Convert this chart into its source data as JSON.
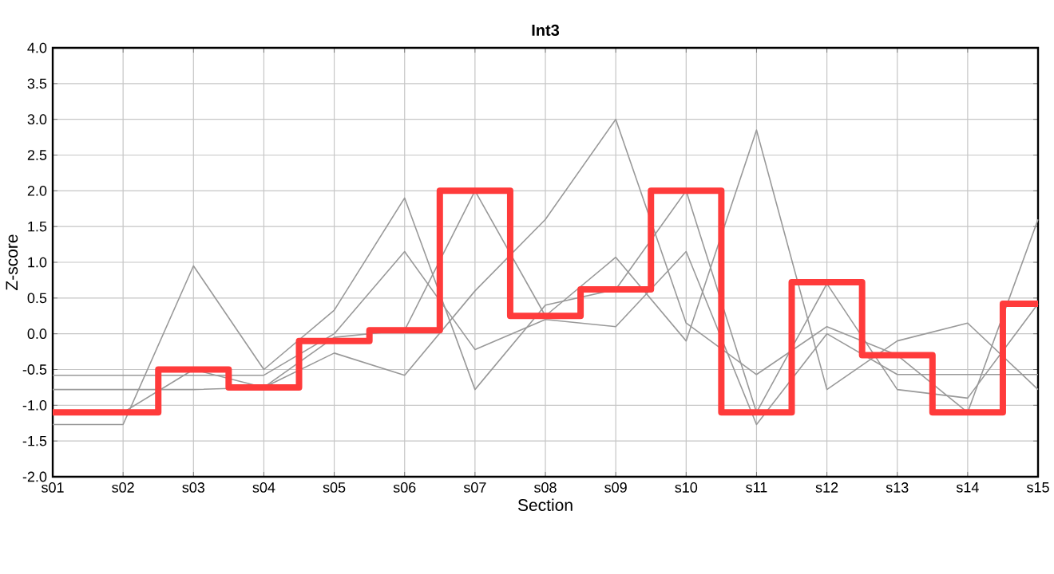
{
  "chart_data": {
    "type": "line",
    "title": "Int3",
    "xlabel": "Section",
    "ylabel": "Z-score",
    "categories": [
      "s01",
      "s02",
      "s03",
      "s04",
      "s05",
      "s06",
      "s07",
      "s08",
      "s09",
      "s10",
      "s11",
      "s12",
      "s13",
      "s14",
      "s15"
    ],
    "ylim": [
      -2,
      4
    ],
    "yticks": [
      {
        "value": -2,
        "label": "-2.0"
      },
      {
        "value": -1.5,
        "label": "-1.5"
      },
      {
        "value": -1,
        "label": "-1.0"
      },
      {
        "value": -0.5,
        "label": "-0.5"
      },
      {
        "value": 0,
        "label": "0.0"
      },
      {
        "value": 0.5,
        "label": "0.5"
      },
      {
        "value": 1,
        "label": "1.0"
      },
      {
        "value": 1.5,
        "label": "1.5"
      },
      {
        "value": 2,
        "label": "2.0"
      },
      {
        "value": 2.5,
        "label": "2.5"
      },
      {
        "value": 3,
        "label": "3.0"
      },
      {
        "value": 3.5,
        "label": "3.5"
      },
      {
        "value": 4,
        "label": "4.0"
      }
    ],
    "grid": true,
    "marker": "none",
    "series": [
      {
        "color": "#999999",
        "values": [
          -1.27,
          -1.27,
          0.95,
          -0.5,
          0.33,
          1.9,
          -0.78,
          0.4,
          0.62,
          2.0,
          -1.1,
          0.7,
          -0.78,
          -0.9,
          0.42
        ]
      },
      {
        "color": "#999999",
        "values": [
          -0.58,
          -0.58,
          -0.58,
          -0.58,
          0.0,
          1.15,
          -0.22,
          0.2,
          0.1,
          1.15,
          -1.27,
          0.0,
          -0.57,
          -0.57,
          -0.57
        ]
      },
      {
        "color": "#999999",
        "values": [
          -0.78,
          -0.78,
          -0.78,
          -0.75,
          -0.05,
          0.05,
          2.0,
          0.25,
          1.07,
          -0.1,
          2.85,
          -0.78,
          -0.1,
          0.15,
          -0.78
        ]
      },
      {
        "color": "#999999",
        "values": [
          -1.1,
          -1.1,
          -0.5,
          -0.75,
          -0.27,
          -0.58,
          0.6,
          1.6,
          3.0,
          0.15,
          -0.57,
          0.1,
          -0.3,
          -1.1,
          1.6
        ]
      },
      {
        "type": "step",
        "color": "#ff3b3b",
        "values": [
          -1.1,
          -1.1,
          -0.5,
          -0.75,
          -0.1,
          0.05,
          2.0,
          0.25,
          0.62,
          2.0,
          -1.1,
          0.72,
          -0.3,
          -1.1,
          0.42
        ]
      }
    ]
  }
}
